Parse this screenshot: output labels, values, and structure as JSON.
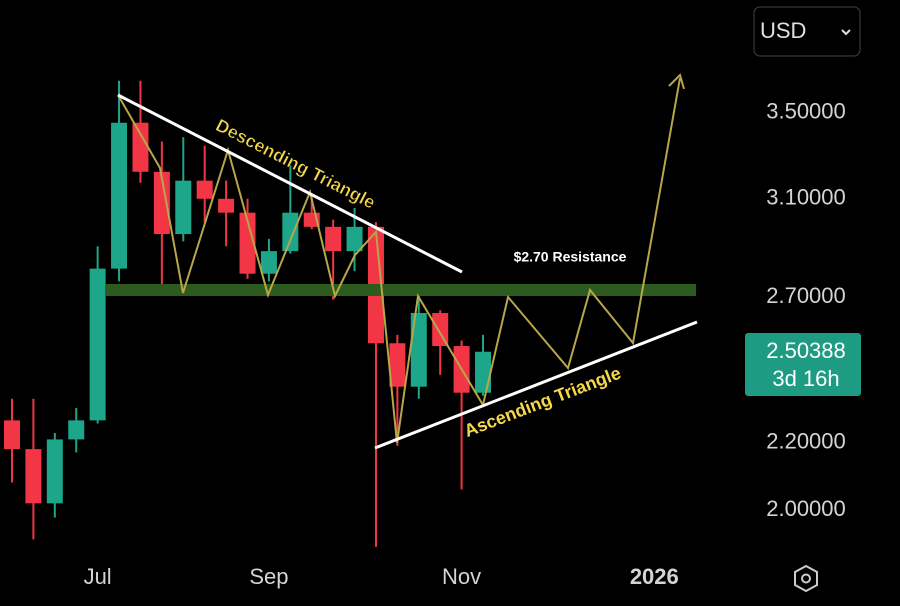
{
  "chart_data": {
    "type": "candlestick",
    "currency": "USD",
    "open": [
      2.27,
      2.18,
      2.02,
      2.21,
      2.27,
      2.81,
      3.45,
      3.22,
      2.95,
      3.18,
      3.1,
      3.04,
      2.79,
      2.88,
      3.04,
      2.98,
      2.88,
      2.98,
      2.53,
      2.38,
      2.64,
      2.52,
      2.36
    ],
    "high": [
      2.34,
      2.34,
      2.23,
      2.31,
      2.9,
      3.66,
      3.66,
      3.36,
      3.38,
      3.34,
      3.18,
      3.1,
      2.93,
      3.25,
      3.11,
      3.01,
      3.06,
      3.0,
      2.56,
      2.71,
      2.65,
      2.54,
      2.56
    ],
    "low": [
      2.08,
      1.92,
      1.98,
      2.17,
      2.26,
      2.76,
      3.17,
      2.73,
      2.92,
      3.0,
      2.9,
      2.77,
      2.76,
      2.87,
      2.97,
      2.69,
      2.8,
      1.9,
      2.19,
      2.34,
      2.42,
      2.06,
      2.35
    ],
    "close": [
      2.18,
      2.02,
      2.21,
      2.27,
      2.81,
      3.45,
      3.22,
      2.95,
      3.18,
      3.1,
      3.04,
      2.79,
      2.88,
      3.04,
      2.98,
      2.88,
      2.98,
      2.53,
      2.38,
      2.64,
      2.52,
      2.36,
      2.5
    ],
    "up_color": "#1ea68a",
    "down_color": "#f23645",
    "log_scale": true,
    "ylim": [
      1.86,
      4.1
    ],
    "yticks": [
      {
        "value": 2.0,
        "label": "2.00000"
      },
      {
        "value": 2.2,
        "label": "2.20000"
      },
      {
        "value": 2.7,
        "label": "2.70000"
      },
      {
        "value": 3.1,
        "label": "3.10000"
      },
      {
        "value": 3.5,
        "label": "3.50000"
      }
    ],
    "xticks": [
      {
        "value": 4,
        "label": "Jul"
      },
      {
        "value": 12,
        "label": "Sep"
      },
      {
        "value": 21,
        "label": "Nov"
      },
      {
        "value": 30,
        "label": "2026"
      }
    ],
    "xlim": [
      0,
      34
    ],
    "last_price": 2.50388,
    "countdown": "3d 16h",
    "annotations": [
      "Descending Triangle",
      "Ascending Triangle",
      "$2.70 Resistance"
    ]
  }
}
